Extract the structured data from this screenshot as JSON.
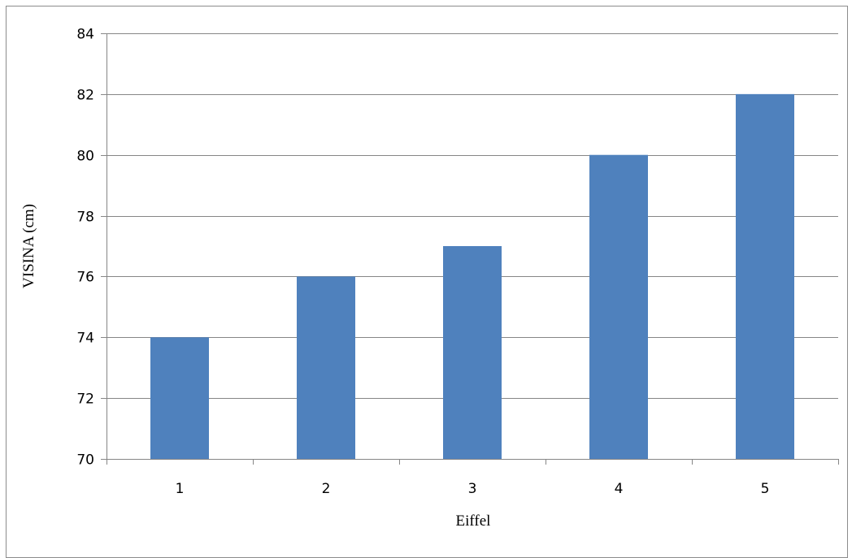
{
  "chart_data": {
    "type": "bar",
    "categories": [
      "1",
      "2",
      "3",
      "4",
      "5"
    ],
    "values": [
      74,
      76,
      77,
      80,
      82
    ],
    "title": "",
    "xlabel": "Eiffel",
    "ylabel": "VISINA (cm)",
    "ylim": [
      70,
      84
    ],
    "yticks": [
      70,
      72,
      74,
      76,
      78,
      80,
      82,
      84
    ],
    "grid": true,
    "legend": "none",
    "bar_color": "#4F81BD",
    "grid_color": "#868686"
  }
}
